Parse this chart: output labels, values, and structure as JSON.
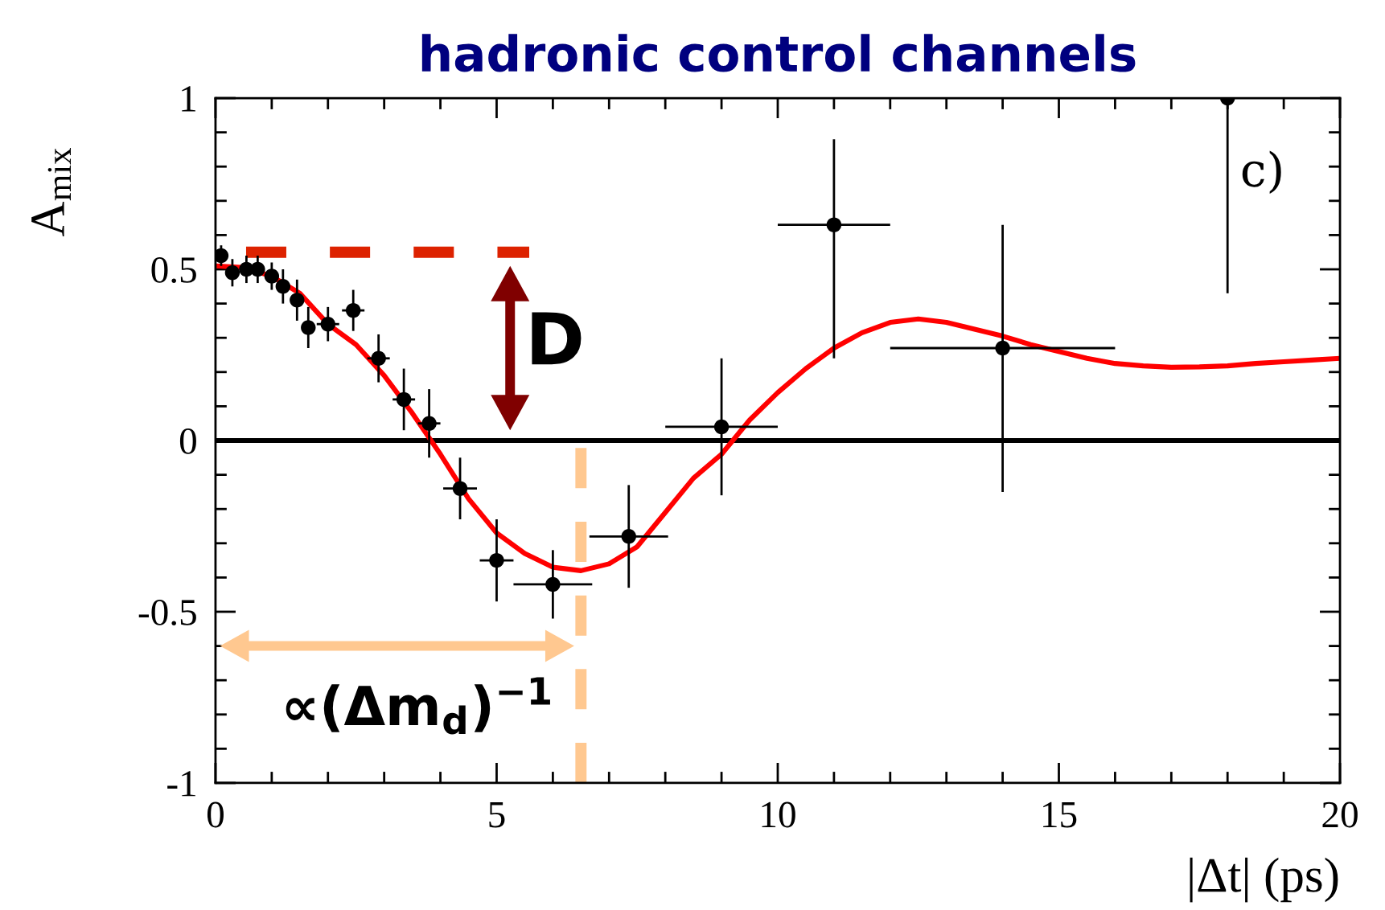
{
  "chart_data": {
    "type": "scatter",
    "title": "hadronic control channels",
    "xlabel": "|Δt| (ps)",
    "ylabel": "A$_{mix}$",
    "annotations": [
      "c)",
      "D",
      "∝(Δm$_{d}$)$^{−1}$"
    ],
    "xlim": [
      0,
      20
    ],
    "ylim": [
      -1,
      1
    ],
    "xticks": [
      0,
      5,
      10,
      15,
      20
    ],
    "yticks": [
      -1,
      -0.5,
      0,
      0.5,
      1
    ],
    "series": [
      {
        "color": "#000000",
        "marker": "circle",
        "x": [
          0.1,
          0.3,
          0.55,
          0.75,
          1.0,
          1.2,
          1.45,
          1.65,
          2.0,
          2.45,
          2.9,
          3.35,
          3.8,
          4.35,
          5.0,
          6.0,
          7.35,
          9.0,
          11.0,
          14.0,
          18.0
        ],
        "values": [
          0.54,
          0.49,
          0.5,
          0.5,
          0.48,
          0.45,
          0.41,
          0.33,
          0.34,
          0.38,
          0.24,
          0.12,
          0.05,
          -0.14,
          -0.35,
          -0.42,
          -0.28,
          0.04,
          0.63,
          0.27,
          1.0
        ],
        "errors": [
          0.03,
          0.04,
          0.04,
          0.04,
          0.04,
          0.05,
          0.06,
          0.06,
          0.05,
          0.06,
          0.07,
          0.09,
          0.1,
          0.09,
          0.12,
          0.1,
          0.15,
          0.2,
          [
            0.24,
            0.88
          ],
          [
            -0.15,
            0.63
          ],
          [
            0.43,
            1.0
          ]
        ],
        "xerrors": [
          null,
          null,
          null,
          null,
          null,
          null,
          null,
          null,
          0.2,
          0.2,
          0.2,
          0.2,
          0.2,
          0.3,
          0.3,
          0.7,
          0.7,
          1,
          1,
          2,
          null
        ]
      },
      {
        "type": "line",
        "color": "#ff0000",
        "x": [
          0,
          0.5,
          1,
          1.5,
          2,
          2.5,
          3,
          3.5,
          4,
          4.5,
          5,
          5.5,
          6,
          6.5,
          7,
          7.5,
          8,
          8.5,
          9,
          9.5,
          10,
          10.5,
          11,
          11.5,
          12,
          12.5,
          13,
          13.5,
          14,
          14.5,
          15,
          15.5,
          16,
          16.5,
          17,
          17.5,
          18,
          18.5,
          19,
          19.5,
          20
        ],
        "values": [
          0.51,
          0.505,
          0.48,
          0.43,
          0.34,
          0.28,
          0.19,
          0.08,
          -0.04,
          -0.17,
          -0.27,
          -0.33,
          -0.37,
          -0.38,
          -0.36,
          -0.31,
          -0.21,
          -0.11,
          -0.04,
          0.06,
          0.14,
          0.21,
          0.27,
          0.315,
          0.345,
          0.355,
          0.345,
          0.325,
          0.305,
          0.28,
          0.26,
          0.24,
          0.225,
          0.218,
          0.214,
          0.215,
          0.218,
          0.225,
          0.23,
          0.235,
          0.24
        ]
      }
    ],
    "ref_lines": [
      {
        "axis": "y",
        "value": 0,
        "color": "#000000"
      },
      {
        "axis": "y",
        "value": 0.55,
        "color": "#dd2200",
        "line_style": "dashed"
      },
      {
        "axis": "x",
        "value": 6.5,
        "color": "#ffc890",
        "line_style": "dashed"
      }
    ]
  }
}
